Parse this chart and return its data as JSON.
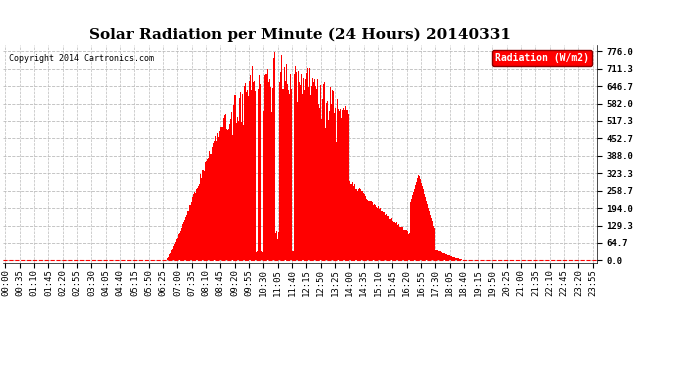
{
  "title": "Solar Radiation per Minute (24 Hours) 20140331",
  "copyright_text": "Copyright 2014 Cartronics.com",
  "legend_label": "Radiation (W/m2)",
  "yticks": [
    0.0,
    64.7,
    129.3,
    194.0,
    258.7,
    323.3,
    388.0,
    452.7,
    517.3,
    582.0,
    646.7,
    711.3,
    776.0
  ],
  "ymax": 776.0,
  "bar_color": "#FF0000",
  "background_color": "#FFFFFF",
  "grid_color": "#BBBBBB",
  "zero_line_color": "#FF0000",
  "title_fontsize": 11,
  "tick_fontsize": 6.5,
  "sunrise_minute": 392,
  "sunset_minute": 1128,
  "peak_minute": 660,
  "peak_value": 776.0,
  "xtick_interval": 35,
  "n_minutes": 1440
}
